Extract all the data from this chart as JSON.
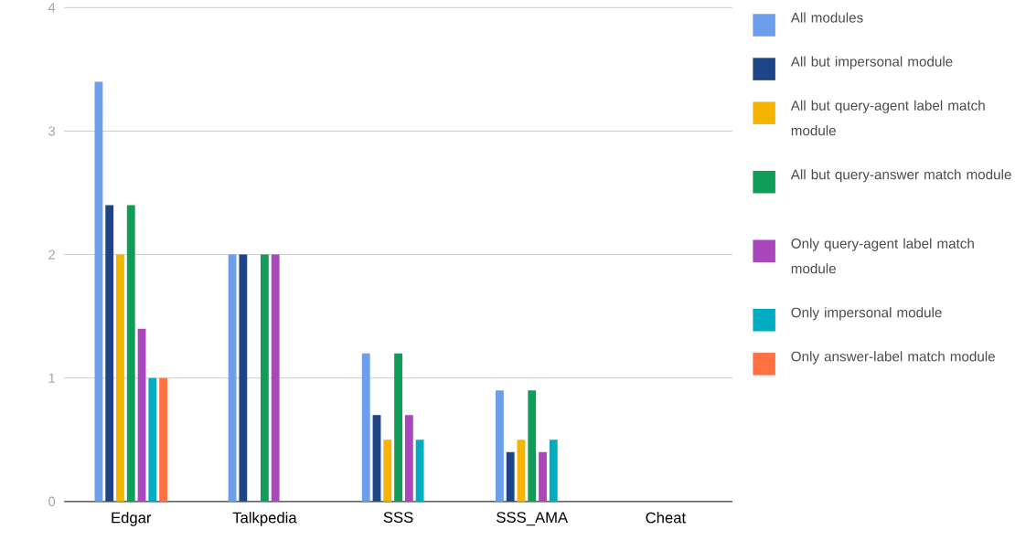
{
  "chart_data": {
    "type": "bar",
    "categories": [
      "Edgar",
      "Talkpedia",
      "SSS",
      "SSS_AMA",
      "Cheat"
    ],
    "series": [
      {
        "name": "All modules",
        "color": "#6d9eeb",
        "values": [
          3.4,
          2,
          1.2,
          0.9,
          0
        ]
      },
      {
        "name": "All but impersonal module",
        "color": "#1c4587",
        "values": [
          2.4,
          2,
          0.7,
          0.4,
          0
        ]
      },
      {
        "name": "All but query-agent label match module",
        "color": "#f4b400",
        "values": [
          2,
          0,
          0.5,
          0.5,
          0
        ]
      },
      {
        "name": "All but query-answer match module",
        "color": "#0f9d58",
        "values": [
          2.4,
          2,
          1.2,
          0.9,
          0
        ]
      },
      {
        "name": "Only query-agent label match module",
        "color": "#ab47bc",
        "values": [
          1.4,
          2,
          0.7,
          0.4,
          0
        ]
      },
      {
        "name": "Only impersonal module",
        "color": "#00acc1",
        "values": [
          1,
          0,
          0.5,
          0.5,
          0
        ]
      },
      {
        "name": "Only answer-label match module",
        "color": "#ff7043",
        "values": [
          1,
          0,
          0,
          0,
          0
        ]
      }
    ],
    "ylim": [
      0,
      4
    ],
    "yticks": [
      0,
      1,
      2,
      3,
      4
    ],
    "grid": "y",
    "legend": "right"
  }
}
